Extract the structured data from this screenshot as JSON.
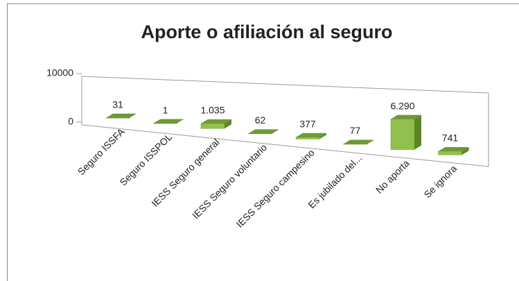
{
  "chart_data": {
    "type": "bar",
    "title": "Aporte o afiliación al seguro",
    "categories": [
      "Seguro ISSFA",
      "Seguro ISSPOL",
      "IESS Seguro general",
      "IESS Seguro voluntario",
      "IESS Seguro campesino",
      "Es jubilado del...",
      "No aporta",
      "Se ignora"
    ],
    "values": [
      31,
      1,
      1035,
      62,
      377,
      77,
      6290,
      741
    ],
    "value_labels": [
      "31",
      "1",
      "1.035",
      "62",
      "377",
      "77",
      "6.290",
      "741"
    ],
    "color": "#92c04f",
    "ylim": [
      0,
      10000
    ],
    "yticks": [
      0,
      10000
    ]
  }
}
